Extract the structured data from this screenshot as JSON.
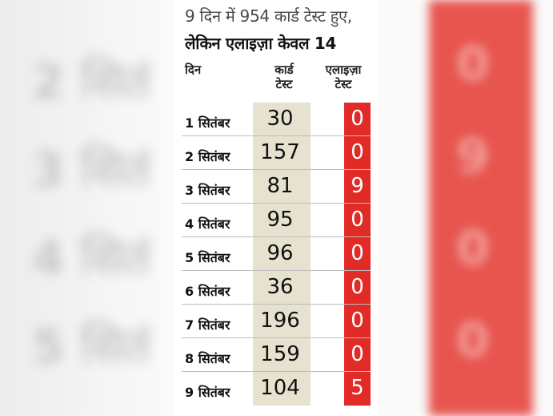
{
  "title_line1": "9 दिन में 954 कार्ड टेस्ट हुए,",
  "title_line2": "लेकिन एलाइज़ा केवल 14",
  "headers": {
    "day": "दिन",
    "card_line1": "कार्ड",
    "card_line2": "टेस्ट",
    "eliza_line1": "एलाइज़ा",
    "eliza_line2": "टेस्ट"
  },
  "rows": [
    {
      "date": "1 सितंबर",
      "card": "30",
      "eliza": "0"
    },
    {
      "date": "2 सितंबर",
      "card": "157",
      "eliza": "0"
    },
    {
      "date": "3 सितंबर",
      "card": "81",
      "eliza": "9"
    },
    {
      "date": "4 सितंबर",
      "card": "95",
      "eliza": "0"
    },
    {
      "date": "5 सितंबर",
      "card": "96",
      "eliza": "0"
    },
    {
      "date": "6 सितंबर",
      "card": "36",
      "eliza": "0"
    },
    {
      "date": "7 सितंबर",
      "card": "196",
      "eliza": "0"
    },
    {
      "date": "8 सितंबर",
      "card": "159",
      "eliza": "0"
    },
    {
      "date": "9 सितंबर",
      "card": "104",
      "eliza": "5"
    }
  ],
  "colors": {
    "card_column": "#e6e2cf",
    "eliza_column": "#e22a26"
  }
}
